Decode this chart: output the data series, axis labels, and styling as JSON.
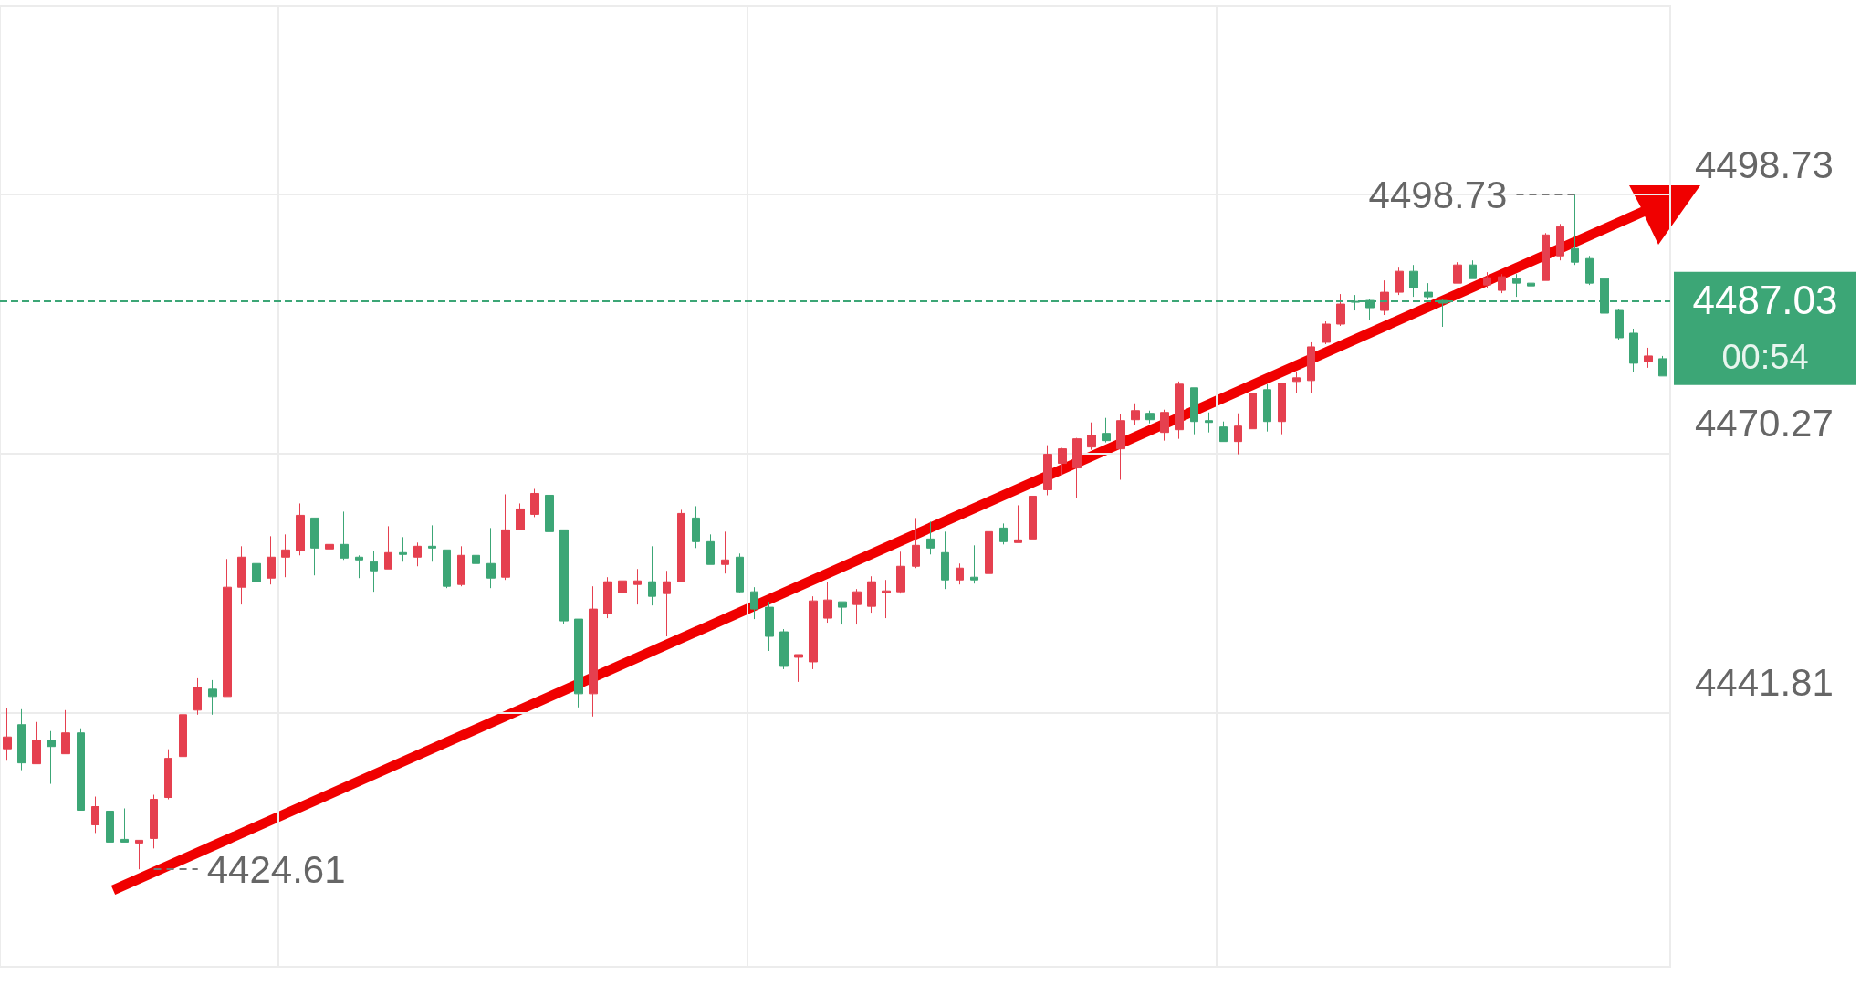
{
  "chart_data": {
    "type": "candlestick",
    "categories": [
      null,
      null,
      null,
      null,
      null,
      null,
      null,
      null,
      null,
      null,
      null,
      null,
      null,
      null,
      null,
      null,
      null,
      null,
      null,
      null,
      null,
      null,
      null,
      null,
      null,
      null,
      null,
      null,
      null,
      null,
      null,
      null,
      null,
      null,
      null,
      null,
      null,
      null,
      null,
      null,
      null,
      null,
      null,
      null,
      null,
      null,
      null,
      null,
      null,
      null,
      null,
      null,
      null,
      null,
      null,
      null,
      null,
      null,
      null,
      null,
      null,
      null,
      null,
      null,
      null,
      null,
      null,
      null,
      null,
      null,
      null,
      null,
      null,
      null,
      null,
      null,
      null,
      null,
      null,
      null,
      null,
      null,
      null,
      null,
      null,
      null,
      null,
      null,
      null,
      null,
      null,
      null,
      null,
      null,
      null,
      null,
      null,
      null,
      null,
      null,
      null,
      null,
      null,
      null,
      null,
      null,
      null,
      null,
      null,
      null,
      null,
      null,
      null,
      null
    ],
    "ohlc": [
      [
        4437.85,
        4442.36,
        4436.54,
        4439.15
      ],
      [
        4440.5,
        4442.2,
        4435.5,
        4436.3
      ],
      [
        4436.2,
        4440.8,
        4436.2,
        4438.8
      ],
      [
        4438.8,
        4439.8,
        4434.0,
        4438.1
      ],
      [
        4437.3,
        4442.1,
        4437.3,
        4439.6
      ],
      [
        4439.6,
        4440.1,
        4431.1,
        4431.1
      ],
      [
        4429.5,
        4432.6,
        4428.6,
        4431.5
      ],
      [
        4431.0,
        4431.0,
        4427.3,
        4427.6
      ],
      [
        4427.9,
        4431.3,
        4427.6,
        4427.6
      ],
      [
        4427.5,
        4427.8,
        4424.61,
        4427.8
      ],
      [
        4428.0,
        4432.8,
        4426.9,
        4432.3
      ],
      [
        4432.5,
        4437.8,
        4432.3,
        4436.8
      ],
      [
        4437.0,
        4441.6,
        4437.0,
        4441.6
      ],
      [
        4442.1,
        4445.6,
        4441.6,
        4444.6
      ],
      [
        4444.4,
        4445.4,
        4441.6,
        4443.6
      ],
      [
        4443.6,
        4458.7,
        4443.6,
        4455.6
      ],
      [
        4455.6,
        4460.1,
        4453.7,
        4458.9
      ],
      [
        4458.2,
        4460.7,
        4455.2,
        4456.2
      ],
      [
        4456.6,
        4461.2,
        4455.9,
        4458.9
      ],
      [
        4458.9,
        4461.4,
        4456.7,
        4459.7
      ],
      [
        4459.6,
        4464.8,
        4459.1,
        4463.5
      ],
      [
        4463.2,
        4463.2,
        4456.9,
        4459.9
      ],
      [
        4459.8,
        4463.2,
        4459.6,
        4460.3
      ],
      [
        4460.3,
        4463.9,
        4458.6,
        4458.8
      ],
      [
        4458.9,
        4459.1,
        4456.6,
        4458.6
      ],
      [
        4458.4,
        4459.6,
        4455.1,
        4457.4
      ],
      [
        4457.6,
        4462.3,
        4457.6,
        4459.4
      ],
      [
        4459.4,
        4461.1,
        4458.4,
        4459.2
      ],
      [
        4458.9,
        4460.5,
        4457.9,
        4460.1
      ],
      [
        4460.1,
        4462.4,
        4458.4,
        4459.9
      ],
      [
        4459.7,
        4459.7,
        4455.5,
        4455.7
      ],
      [
        4455.9,
        4460.1,
        4455.7,
        4459.1
      ],
      [
        4459.1,
        4461.7,
        4456.9,
        4458.2
      ],
      [
        4458.2,
        4462.1,
        4455.5,
        4456.6
      ],
      [
        4456.7,
        4465.8,
        4456.4,
        4461.9
      ],
      [
        4461.9,
        4464.8,
        4461.9,
        4464.2
      ],
      [
        4463.6,
        4466.4,
        4463.3,
        4465.9
      ],
      [
        4465.7,
        4465.9,
        4458.2,
        4461.7
      ],
      [
        4461.9,
        4461.9,
        4451.6,
        4451.9
      ],
      [
        4452.1,
        4452.1,
        4442.4,
        4443.9
      ],
      [
        4443.9,
        4455.7,
        4441.4,
        4453.2
      ],
      [
        4452.7,
        4456.7,
        4452.2,
        4456.2
      ],
      [
        4455.0,
        4458.1,
        4453.6,
        4456.3
      ],
      [
        4455.9,
        4457.6,
        4453.7,
        4456.3
      ],
      [
        4456.2,
        4460.1,
        4453.6,
        4454.6
      ],
      [
        4454.9,
        4457.4,
        4450.2,
        4456.2
      ],
      [
        4456.2,
        4464.1,
        4456.2,
        4463.7
      ],
      [
        4463.2,
        4464.5,
        4459.9,
        4460.6
      ],
      [
        4460.6,
        4461.4,
        4458.1,
        4458.1
      ],
      [
        4458.1,
        4461.7,
        4457.1,
        4458.6
      ],
      [
        4458.9,
        4459.3,
        4455.0,
        4455.1
      ],
      [
        4455.1,
        4455.6,
        4452.1,
        4453.2
      ],
      [
        4453.4,
        4454.0,
        4448.6,
        4450.2
      ],
      [
        4450.7,
        4451.0,
        4446.6,
        4446.9
      ],
      [
        4447.9,
        4448.2,
        4445.2,
        4448.2
      ],
      [
        4447.4,
        4454.6,
        4446.6,
        4454.1
      ],
      [
        4452.2,
        4456.2,
        4451.7,
        4454.2
      ],
      [
        4454.0,
        4454.0,
        4451.5,
        4453.4
      ],
      [
        4453.7,
        4455.4,
        4451.5,
        4455.1
      ],
      [
        4453.5,
        4456.8,
        4452.8,
        4456.2
      ],
      [
        4455.0,
        4456.4,
        4452.2,
        4455.2
      ],
      [
        4455.1,
        4459.5,
        4454.9,
        4457.9
      ],
      [
        4457.9,
        4463.2,
        4457.7,
        4460.2
      ],
      [
        4460.9,
        4462.8,
        4459.2,
        4459.9
      ],
      [
        4459.4,
        4461.7,
        4455.4,
        4456.4
      ],
      [
        4456.4,
        4458.2,
        4455.9,
        4457.7
      ],
      [
        4456.7,
        4460.2,
        4456.0,
        4456.4
      ],
      [
        4457.1,
        4461.7,
        4457.1,
        4461.7
      ],
      [
        4462.1,
        4462.6,
        4460.3,
        4460.6
      ],
      [
        4460.5,
        4464.6,
        4460.5,
        4460.8
      ],
      [
        4460.9,
        4465.6,
        4460.9,
        4465.6
      ],
      [
        4466.3,
        4471.2,
        4465.7,
        4470.2
      ],
      [
        4469.2,
        4470.9,
        4467.9,
        4470.8
      ],
      [
        4468.7,
        4472.0,
        4465.4,
        4471.9
      ],
      [
        4471.0,
        4473.7,
        4470.7,
        4472.3
      ],
      [
        4472.5,
        4474.2,
        4471.5,
        4471.7
      ],
      [
        4470.8,
        4474.6,
        4467.4,
        4473.9
      ],
      [
        4474.0,
        4475.8,
        4473.4,
        4475.0
      ],
      [
        4474.7,
        4475.0,
        4473.6,
        4474.0
      ],
      [
        4472.6,
        4475.1,
        4471.7,
        4474.8
      ],
      [
        4472.9,
        4478.2,
        4471.9,
        4477.9
      ],
      [
        4477.5,
        4477.5,
        4472.4,
        4473.8
      ],
      [
        4473.9,
        4474.8,
        4472.6,
        4473.7
      ],
      [
        4473.2,
        4473.8,
        4471.6,
        4471.6
      ],
      [
        4471.6,
        4474.7,
        4470.2,
        4473.3
      ],
      [
        4473.0,
        4476.9,
        4473.0,
        4476.9
      ],
      [
        4477.3,
        4477.9,
        4472.7,
        4473.8
      ],
      [
        4473.8,
        4478.0,
        4472.4,
        4478.0
      ],
      [
        4478.2,
        4479.2,
        4476.9,
        4478.6
      ],
      [
        4478.3,
        4482.5,
        4476.9,
        4482.0
      ],
      [
        4482.5,
        4484.8,
        4482.3,
        4484.5
      ],
      [
        4484.5,
        4487.8,
        4484.3,
        4486.7
      ],
      [
        4487.0,
        4487.7,
        4486.0,
        4486.9
      ],
      [
        4487.1,
        4487.3,
        4485.0,
        4486.3
      ],
      [
        4486.0,
        4489.3,
        4485.5,
        4488.0
      ],
      [
        4488.0,
        4490.7,
        4487.7,
        4490.3
      ],
      [
        4490.3,
        4491.0,
        4487.5,
        4488.5
      ],
      [
        4488.0,
        4489.0,
        4487.2,
        4487.5
      ],
      [
        4487.1,
        4487.3,
        4484.2,
        4486.8
      ],
      [
        4489.0,
        4491.3,
        4489.0,
        4491.0
      ],
      [
        4491.0,
        4491.5,
        4489.5,
        4489.5
      ],
      [
        4488.8,
        4490.2,
        4488.5,
        4489.6
      ],
      [
        4488.2,
        4490.0,
        4487.9,
        4489.7
      ],
      [
        4489.5,
        4490.0,
        4487.5,
        4489.0
      ],
      [
        4489.0,
        4490.7,
        4487.5,
        4488.7
      ],
      [
        4489.3,
        4494.5,
        4489.3,
        4494.3
      ],
      [
        4492.0,
        4495.5,
        4491.5,
        4495.2
      ],
      [
        4492.8,
        4498.73,
        4491.0,
        4491.3
      ],
      [
        4491.7,
        4492.0,
        4488.8,
        4489.0
      ],
      [
        4489.5,
        4489.5,
        4485.5,
        4485.7
      ],
      [
        4486.0,
        4486.2,
        4482.8,
        4483.0
      ],
      [
        4483.5,
        4484.0,
        4479.2,
        4480.2
      ],
      [
        4480.4,
        4481.9,
        4479.7,
        4481.0
      ],
      [
        4480.7,
        4481.0,
        4478.8,
        4478.8
      ]
    ],
    "ylim": [
      4413.9,
      4519.4
    ],
    "yticks": [
      4441.81,
      4470.27,
      4498.73
    ],
    "grid": true,
    "tick_labels": "y",
    "ref_lines": [
      {
        "axis": "y",
        "value": 4487.03,
        "label": "4487.03",
        "color": "#3ca676",
        "line_style": "dashed"
      }
    ],
    "annotations": [
      "4498.73",
      "4424.61",
      "00:54"
    ]
  }
}
